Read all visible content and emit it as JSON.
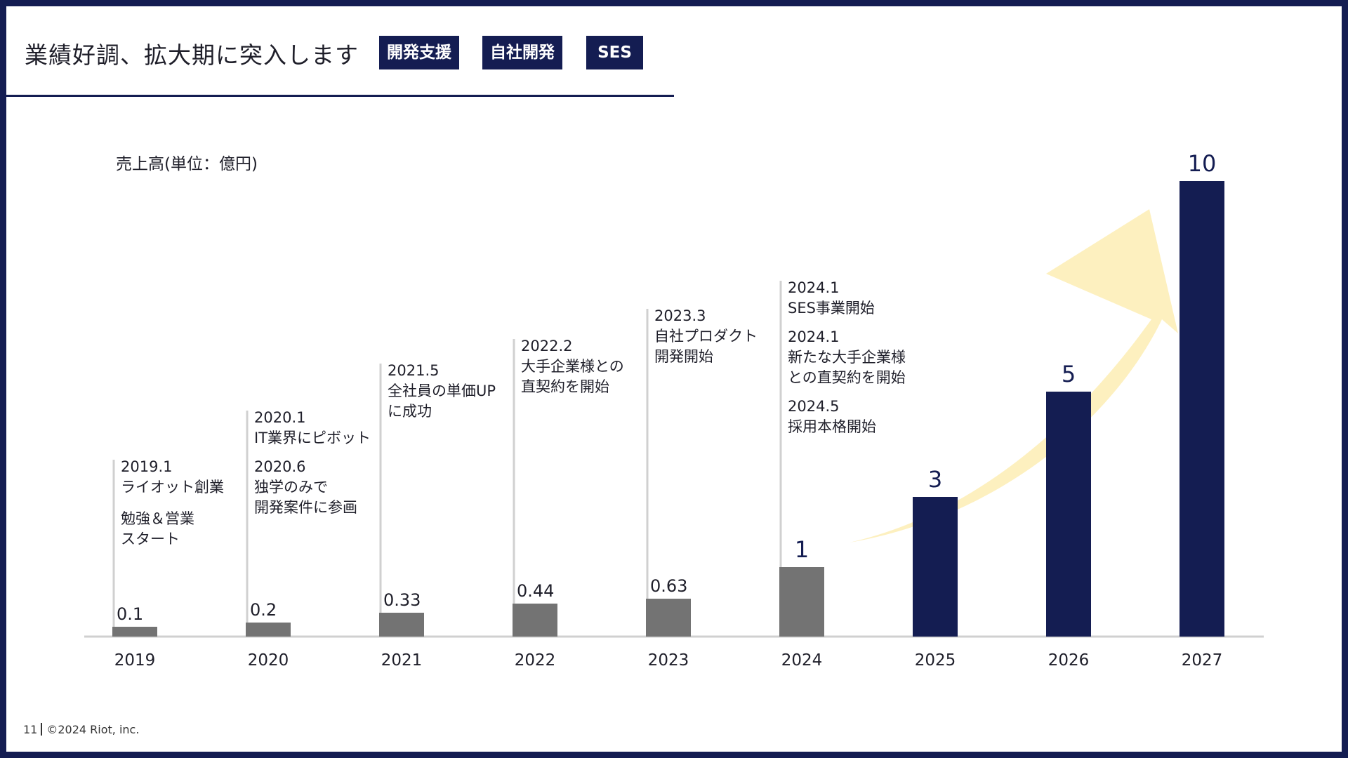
{
  "header": {
    "title": "業績好調、拡大期に突入します",
    "tags": [
      "開発支援",
      "自社開発",
      "SES"
    ]
  },
  "footer": {
    "page_number": "11",
    "copyright": "©2024 Riot, inc."
  },
  "colors": {
    "navy": "#141d52",
    "actual_bar": "#737373",
    "arrow": "#fdf0bf",
    "baseline": "#d0d0d0"
  },
  "chart_data": {
    "type": "bar",
    "ylabel": "売上高(単位：億円)",
    "categories": [
      "2019",
      "2020",
      "2021",
      "2022",
      "2023",
      "2024",
      "2025",
      "2026",
      "2027"
    ],
    "values": [
      0.1,
      0.2,
      0.33,
      0.44,
      0.63,
      1,
      3,
      5,
      10
    ],
    "value_labels": [
      "0.1",
      "0.2",
      "0.33",
      "0.44",
      "0.63",
      "1",
      "3",
      "5",
      "10"
    ],
    "bar_colors": [
      "#737373",
      "#737373",
      "#737373",
      "#737373",
      "#737373",
      "#737373",
      "#141d52",
      "#141d52",
      "#141d52"
    ],
    "scale": "non-linear (visual)",
    "grid": false,
    "legend": "none",
    "events": [
      {
        "year": "2019",
        "items": [
          {
            "date": "2019.1",
            "lines": [
              "ライオット創業"
            ]
          },
          {
            "date": "",
            "lines": [
              "勉強＆営業",
              "スタート"
            ]
          }
        ]
      },
      {
        "year": "2020",
        "items": [
          {
            "date": "2020.1",
            "lines": [
              "IT業界にピボット"
            ]
          },
          {
            "date": "2020.6",
            "lines": [
              "独学のみで",
              "開発案件に参画"
            ]
          }
        ]
      },
      {
        "year": "2021",
        "items": [
          {
            "date": "2021.5",
            "lines": [
              "全社員の単価UP",
              "に成功"
            ]
          }
        ]
      },
      {
        "year": "2022",
        "items": [
          {
            "date": "2022.2",
            "lines": [
              "大手企業様との",
              "直契約を開始"
            ]
          }
        ]
      },
      {
        "year": "2023",
        "items": [
          {
            "date": "2023.3",
            "lines": [
              "自社プロダクト",
              "開発開始"
            ]
          }
        ]
      },
      {
        "year": "2024",
        "items": [
          {
            "date": "2024.1",
            "lines": [
              "SES事業開始"
            ]
          },
          {
            "date": "2024.1",
            "lines": [
              "新たな大手企業様",
              "との直契約を開始"
            ]
          },
          {
            "date": "2024.5",
            "lines": [
              "採用本格開始"
            ]
          }
        ]
      }
    ]
  }
}
